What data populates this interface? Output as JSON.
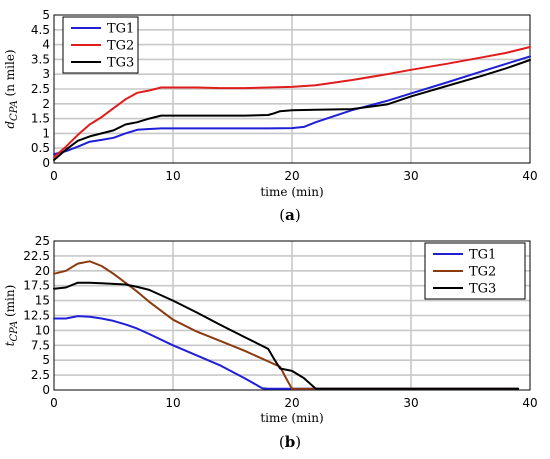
{
  "chart_data": [
    {
      "type": "line",
      "caption_open": "(",
      "caption_letter": "a",
      "caption_close": ")",
      "xlabel": "time (min)",
      "ylabel_main": "d",
      "ylabel_sub": "CPA",
      "ylabel_unit": " (n mile)",
      "xlim": [
        0,
        40
      ],
      "ylim": [
        0,
        5
      ],
      "xticks": [
        "0",
        "10",
        "20",
        "30",
        "40"
      ],
      "yticks": [
        "0",
        "0.5",
        "1",
        "1.5",
        "2",
        "2.5",
        "3",
        "3.5",
        "4",
        "4.5",
        "5"
      ],
      "grid": true,
      "legend_position": "top-left",
      "series": [
        {
          "name": "TG1",
          "color": "#1f1fd6",
          "x": [
            0,
            1,
            2,
            3,
            4,
            5,
            6,
            7,
            8,
            9,
            10,
            12,
            14,
            16,
            18,
            20,
            21,
            22,
            25,
            28,
            30,
            33,
            36,
            38,
            40
          ],
          "y": [
            0.3,
            0.4,
            0.55,
            0.72,
            0.78,
            0.85,
            1.0,
            1.12,
            1.15,
            1.17,
            1.17,
            1.17,
            1.17,
            1.17,
            1.17,
            1.18,
            1.22,
            1.38,
            1.78,
            2.1,
            2.35,
            2.72,
            3.1,
            3.35,
            3.6
          ]
        },
        {
          "name": "TG2",
          "color": "#e01c1c",
          "x": [
            0,
            1,
            2,
            3,
            4,
            5,
            6,
            7,
            8,
            9,
            10,
            12,
            14,
            16,
            18,
            20,
            22,
            25,
            28,
            30,
            33,
            36,
            38,
            40
          ],
          "y": [
            0.2,
            0.55,
            0.95,
            1.3,
            1.55,
            1.85,
            2.15,
            2.37,
            2.45,
            2.55,
            2.55,
            2.55,
            2.53,
            2.53,
            2.55,
            2.57,
            2.63,
            2.8,
            3.0,
            3.15,
            3.35,
            3.57,
            3.72,
            3.92
          ]
        },
        {
          "name": "TG3",
          "color": "#000000",
          "x": [
            0,
            1,
            2,
            3,
            4,
            5,
            6,
            7,
            8,
            9,
            10,
            12,
            14,
            16,
            18,
            18.5,
            19,
            20,
            22,
            25,
            28,
            30,
            33,
            36,
            38,
            40
          ],
          "y": [
            0.1,
            0.45,
            0.75,
            0.9,
            1.0,
            1.1,
            1.3,
            1.38,
            1.5,
            1.6,
            1.6,
            1.6,
            1.6,
            1.6,
            1.62,
            1.68,
            1.75,
            1.78,
            1.8,
            1.82,
            1.98,
            2.25,
            2.6,
            2.95,
            3.2,
            3.48
          ]
        }
      ]
    },
    {
      "type": "line",
      "caption_open": "(",
      "caption_letter": "b",
      "caption_close": ")",
      "xlabel": "time (min)",
      "ylabel_main": "t",
      "ylabel_sub": "CPA",
      "ylabel_unit": " (min)",
      "xlim": [
        0,
        40
      ],
      "ylim": [
        0,
        25
      ],
      "xticks": [
        "0",
        "10",
        "20",
        "30",
        "40"
      ],
      "yticks": [
        "0",
        "2.5",
        "5",
        "7.5",
        "10",
        "12.5",
        "15",
        "17.5",
        "20",
        "22.5",
        "25"
      ],
      "grid": true,
      "legend_position": "top-right",
      "series": [
        {
          "name": "TG1",
          "color": "#1f1fd6",
          "x": [
            0,
            1,
            2,
            3,
            4,
            5,
            6,
            7,
            8,
            10,
            12,
            14,
            16,
            17.5,
            18,
            19,
            20,
            25,
            30,
            35,
            39
          ],
          "y": [
            12.0,
            12.0,
            12.4,
            12.3,
            12.0,
            11.6,
            11.0,
            10.3,
            9.4,
            7.5,
            5.8,
            4.1,
            2.0,
            0.3,
            0.2,
            0.2,
            0.2,
            0.2,
            0.2,
            0.2,
            0.2
          ]
        },
        {
          "name": "TG2",
          "color": "#8b3a10",
          "x": [
            0,
            1,
            2,
            3,
            4,
            5,
            6,
            7,
            8,
            10,
            12,
            14,
            16,
            18,
            19,
            19.5,
            20,
            25,
            30,
            35,
            39
          ],
          "y": [
            19.5,
            20.0,
            21.2,
            21.6,
            20.8,
            19.5,
            18.0,
            16.5,
            14.8,
            11.8,
            9.8,
            8.2,
            6.6,
            4.8,
            3.9,
            2.0,
            0.2,
            0.2,
            0.2,
            0.2,
            0.2
          ]
        },
        {
          "name": "TG3",
          "color": "#000000",
          "x": [
            0,
            1,
            2,
            3,
            4,
            5,
            6,
            7,
            8,
            10,
            12,
            14,
            16,
            18,
            18.5,
            19,
            20,
            21,
            22,
            25,
            30,
            35,
            39
          ],
          "y": [
            17.0,
            17.2,
            18.0,
            18.0,
            17.9,
            17.8,
            17.7,
            17.3,
            16.8,
            15.0,
            13.0,
            10.9,
            8.9,
            6.9,
            5.2,
            3.6,
            3.2,
            2.0,
            0.2,
            0.2,
            0.2,
            0.2,
            0.2
          ]
        }
      ]
    }
  ]
}
